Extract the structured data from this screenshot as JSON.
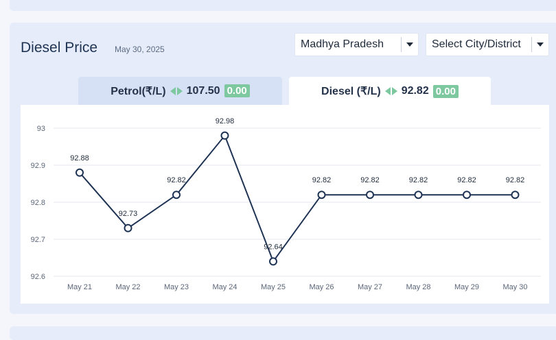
{
  "header": {
    "title": "Diesel Price",
    "date": "May 30, 2025"
  },
  "filters": {
    "state": "Madhya Pradesh",
    "city_placeholder": "Select City/District"
  },
  "tabs": [
    {
      "fuel": "Petrol(₹/L)",
      "price": "107.50",
      "change": "0.00",
      "active": false
    },
    {
      "fuel": "Diesel (₹/L)",
      "price": "92.82",
      "change": "0.00",
      "active": true
    }
  ],
  "colors": {
    "line": "#1e3354",
    "change_badge": "#7ec8a0",
    "active_tab": "#ffffff",
    "inactive_tab": "#d7e1f5"
  },
  "chart_data": {
    "type": "line",
    "categories": [
      "May 21",
      "May 22",
      "May 23",
      "May 24",
      "May 25",
      "May 26",
      "May 27",
      "May 28",
      "May 29",
      "May 30"
    ],
    "series": [
      {
        "values": [
          92.88,
          92.73,
          92.82,
          92.98,
          92.64,
          92.82,
          92.82,
          92.82,
          92.82,
          92.82
        ]
      }
    ],
    "y_ticks": [
      "92.6",
      "92.7",
      "92.8",
      "92.9",
      "93"
    ],
    "ylim": [
      92.6,
      93.0
    ],
    "grid": true,
    "data_labels": [
      "92.88",
      "92.73",
      "92.82",
      "92.98",
      "92.64",
      "92.82",
      "92.82",
      "92.82",
      "92.82",
      "92.82"
    ]
  }
}
